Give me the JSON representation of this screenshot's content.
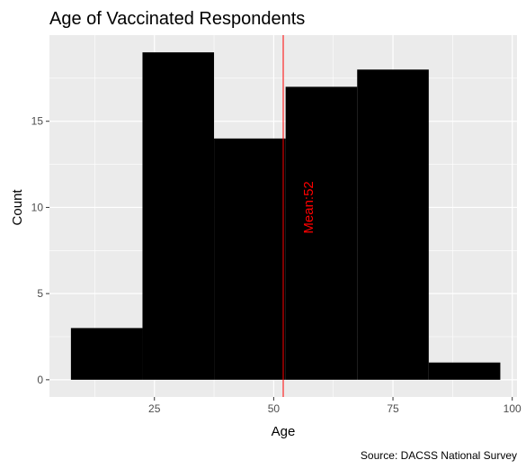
{
  "chart_data": {
    "type": "bar",
    "title": "Age of Vaccinated Respondents",
    "xlabel": "Age",
    "ylabel": "Count",
    "caption": "Source: DACSS National Survey",
    "xlim": [
      3,
      101
    ],
    "ylim": [
      -1,
      20
    ],
    "xticks": [
      25,
      50,
      75,
      100
    ],
    "yticks": [
      0,
      5,
      10,
      15
    ],
    "bins": [
      {
        "start": 7.5,
        "end": 22.5,
        "count": 3
      },
      {
        "start": 22.5,
        "end": 37.5,
        "count": 19
      },
      {
        "start": 37.5,
        "end": 52.5,
        "count": 14
      },
      {
        "start": 52.5,
        "end": 67.5,
        "count": 17
      },
      {
        "start": 67.5,
        "end": 82.5,
        "count": 18
      },
      {
        "start": 82.5,
        "end": 97.5,
        "count": 1
      }
    ],
    "mean_line": {
      "x": 52,
      "label": "Mean:52",
      "color": "#ff0000"
    },
    "bar_color": "#000000",
    "panel_color": "#ebebeb",
    "grid": true
  }
}
